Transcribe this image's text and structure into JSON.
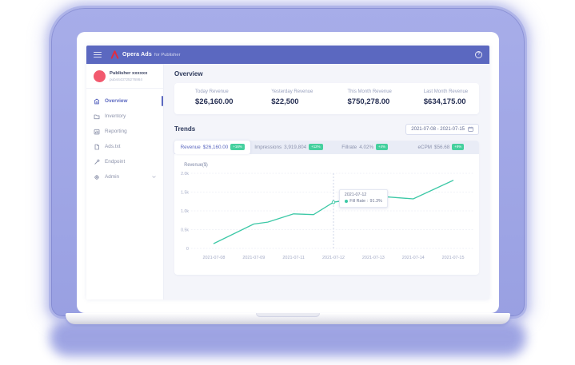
{
  "colors": {
    "header_bg": "#5b68c0",
    "accent": "#5b68c0",
    "badge_green": "#45d09e",
    "line_teal": "#3cc8a6",
    "avatar_pink": "#f2596e",
    "laptop_purple": "#99a0e2",
    "laptop_purple_light": "#a7ade9",
    "main_bg": "#f4f5fa",
    "text_dark": "#262f53",
    "text_muted": "#9aa2bf",
    "logo_red": "#e62b3c"
  },
  "icons": {
    "help": "?"
  },
  "app": {
    "header": {
      "brand": "Opera Ads",
      "brand_suffix": "for Publisher"
    },
    "sidebar": {
      "publisher_name": "Publisher xxxxxx",
      "publisher_id": "pub4443725276864",
      "items": [
        {
          "label": "Overview",
          "icon": "dashboard-icon",
          "active": true
        },
        {
          "label": "Inventory",
          "icon": "folder-icon",
          "active": false
        },
        {
          "label": "Reporting",
          "icon": "report-icon",
          "active": false
        },
        {
          "label": "Ads.txt",
          "icon": "document-icon",
          "active": false
        },
        {
          "label": "Endpoint",
          "icon": "endpoint-icon",
          "active": false
        },
        {
          "label": "Admin",
          "icon": "gear-icon",
          "active": false,
          "has_submenu": true
        }
      ]
    },
    "overview": {
      "title": "Overview",
      "stats": [
        {
          "label": "Today Revenue",
          "value": "$26,160.00"
        },
        {
          "label": "Yesterday Revenue",
          "value": "$22,500"
        },
        {
          "label": "This Month Revenue",
          "value": "$750,278.00"
        },
        {
          "label": "Last Month Revenue",
          "value": "$634,175.00"
        }
      ]
    },
    "trends": {
      "title": "Trends",
      "date_range": "2021-07-08 - 2021-07-15",
      "tabs": [
        {
          "label": "Revenue",
          "value": "$26,160.00",
          "badge": "+16%",
          "active": true
        },
        {
          "label": "Impressions",
          "value": "3,919,804",
          "badge": "+12%",
          "active": false
        },
        {
          "label": "Fillrate",
          "value": "4.02%",
          "badge": "+4%",
          "active": false
        },
        {
          "label": "eCPM",
          "value": "$56.68",
          "badge": "+9%",
          "active": false
        }
      ]
    }
  },
  "chart_data": {
    "type": "line",
    "title": "Revenue($)",
    "xlabel": "",
    "ylabel": "Revenue($)",
    "categories": [
      "2021-07-08",
      "2021-07-09",
      "2021-07-11",
      "2021-07-12",
      "2021-07-13",
      "2021-07-14",
      "2021-07-15"
    ],
    "values": [
      130,
      660,
      930,
      1230,
      1400,
      1320,
      1810
    ],
    "shape_points": [
      [
        0,
        130
      ],
      [
        1,
        650
      ],
      [
        1.35,
        700
      ],
      [
        2,
        920
      ],
      [
        2.5,
        900
      ],
      [
        3,
        1230
      ],
      [
        4,
        1400
      ],
      [
        5,
        1320
      ],
      [
        6,
        1810
      ]
    ],
    "y_ticks": [
      "0",
      "0.5k",
      "1.0k",
      "1.5k",
      "2.0k"
    ],
    "y_tick_values": [
      0,
      500,
      1000,
      1500,
      2000
    ],
    "ylim": [
      0,
      2000
    ],
    "grid": "dashed-horizontal",
    "legend": "none",
    "line_color": "#3cc8a6",
    "tooltip": {
      "date": "2021-07-12",
      "label": "Fill Rate :",
      "value": "91.3%",
      "x_index": 3
    }
  }
}
